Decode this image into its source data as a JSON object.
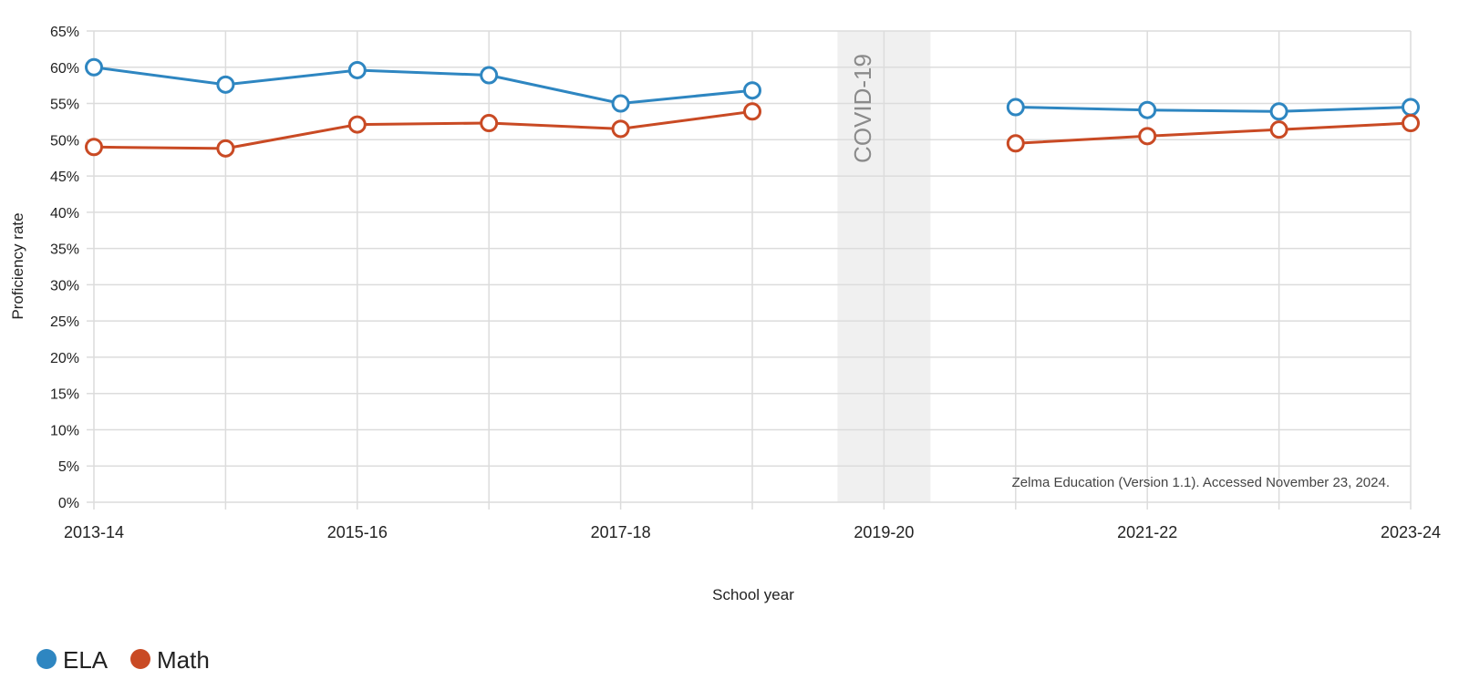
{
  "chart_data": {
    "type": "line",
    "x": [
      "2013-14",
      "2014-15",
      "2015-16",
      "2016-17",
      "2017-18",
      "2018-19",
      "2019-20",
      "2020-21",
      "2021-22",
      "2022-23",
      "2023-24"
    ],
    "x_tick_labels": [
      "2013-14",
      "2015-16",
      "2017-18",
      "2019-20",
      "2021-22",
      "2023-24"
    ],
    "series": [
      {
        "name": "ELA",
        "color": "#2E86C1",
        "values": [
          60.0,
          57.6,
          59.6,
          58.9,
          55.0,
          56.8,
          null,
          54.5,
          54.1,
          53.9,
          54.5
        ]
      },
      {
        "name": "Math",
        "color": "#C94A24",
        "values": [
          49.0,
          48.8,
          52.1,
          52.3,
          51.5,
          53.9,
          null,
          49.5,
          50.5,
          51.4,
          52.3
        ]
      }
    ],
    "xlabel": "School year",
    "ylabel": "Proficiency rate",
    "ylim": [
      0,
      65
    ],
    "y_ticks": [
      "0%",
      "5%",
      "10%",
      "15%",
      "20%",
      "25%",
      "30%",
      "35%",
      "40%",
      "45%",
      "50%",
      "55%",
      "60%",
      "65%"
    ],
    "grid": true,
    "legend_position": "bottom-left",
    "annotations": {
      "covid_band_year": "2019-20",
      "covid_label": "COVID-19",
      "source_note": "Zelma Education (Version 1.1). Accessed November 23, 2024."
    }
  }
}
